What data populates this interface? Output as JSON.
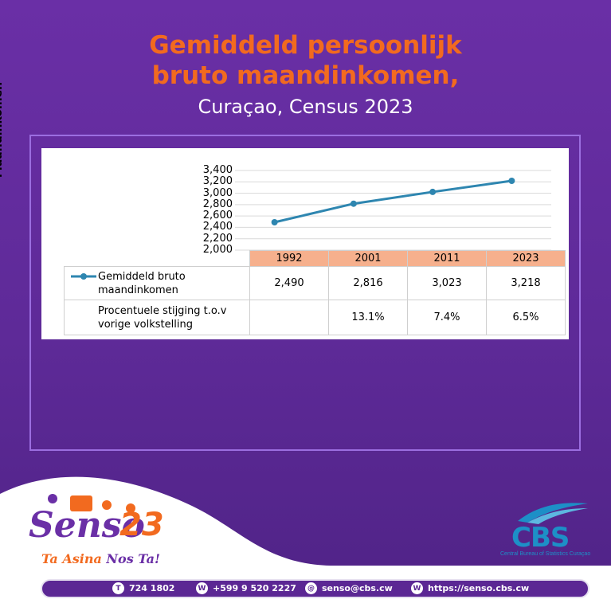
{
  "header": {
    "title_line1": "Gemiddeld persoonlijk",
    "title_line2": "bruto maandinkomen,",
    "subtitle": "Curaçao, Census 2023"
  },
  "chart_data": {
    "type": "line",
    "ylabel": "Maandinkomen",
    "ylim": [
      2000,
      3400
    ],
    "yticks": [
      "3,400",
      "3,200",
      "3,000",
      "2,800",
      "2,600",
      "2,400",
      "2,200",
      "2,000"
    ],
    "categories": [
      "1992",
      "2001",
      "2011",
      "2023"
    ],
    "series": [
      {
        "name": "Gemiddeld bruto maandinkomen",
        "values": [
          2490,
          2816,
          3023,
          3218
        ],
        "color": "#2e86b0"
      }
    ],
    "table": {
      "row1_label": "Gemiddeld bruto maandinkomen",
      "row1_values": [
        "2,490",
        "2,816",
        "3,023",
        "3,218"
      ],
      "row2_label": "Procentuele stijging t.o.v vorige volkstelling",
      "row2_values": [
        "",
        "13.1%",
        "7.4%",
        "6.5%"
      ]
    },
    "grid": true,
    "header_color": "#f6b08d"
  },
  "branding": {
    "senso": "Senso",
    "senso_num": "23",
    "tagline_1": "Ta",
    "tagline_2": "Asina",
    "tagline_3": "Nos",
    "tagline_4": "Ta!",
    "cbs": "CBS",
    "cbs_sub": "Central Bureau of Statistics Curaçao"
  },
  "footer": {
    "phone_icon": "T",
    "phone": "724 1802",
    "whatsapp_icon": "W",
    "whatsapp": "+599 9 520 2227",
    "email_icon": "@",
    "email": "senso@cbs.cw",
    "web_icon": "W",
    "web": "https://senso.cbs.cw"
  },
  "colors": {
    "accent": "#f26a1f",
    "background": "#6a2fa6",
    "cbs_blue": "#1d8fc7"
  }
}
